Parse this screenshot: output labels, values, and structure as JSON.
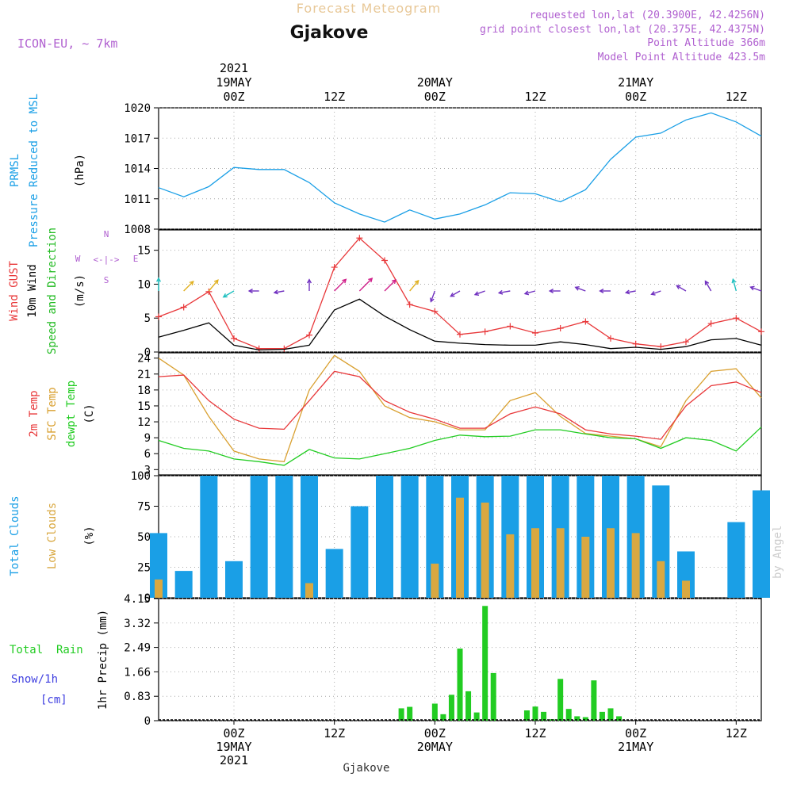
{
  "header": {
    "title": "Forecast Meteogram",
    "location": "Gjakove",
    "model": "ICON-EU, ~ 7km",
    "requested": "requested lon,lat (20.3900E, 42.4256N)",
    "grid_point": "grid point closest lon,lat (20.375E, 42.4375N)",
    "point_altitude": "Point Altitude 366m",
    "model_altitude": "Model Point Altitude 423.5m",
    "footer_location": "Gjakove",
    "credit": "by Angel"
  },
  "time_axis": {
    "start": "2021-05-18T15:00Z",
    "end": "2021-05-21T15:00Z",
    "ticks": [
      {
        "time": "2021-05-19T00:00Z",
        "top": [
          "2021",
          "19MAY",
          "00Z"
        ],
        "bottom": [
          "00Z",
          "19MAY",
          "2021"
        ]
      },
      {
        "time": "2021-05-19T12:00Z",
        "top": [
          "12Z"
        ],
        "bottom": [
          "12Z"
        ]
      },
      {
        "time": "2021-05-20T00:00Z",
        "top": [
          "20MAY",
          "00Z"
        ],
        "bottom": [
          "00Z",
          "20MAY"
        ]
      },
      {
        "time": "2021-05-20T12:00Z",
        "top": [
          "12Z"
        ],
        "bottom": [
          "12Z"
        ]
      },
      {
        "time": "2021-05-21T00:00Z",
        "top": [
          "21MAY",
          "00Z"
        ],
        "bottom": [
          "00Z",
          "21MAY"
        ]
      },
      {
        "time": "2021-05-21T12:00Z",
        "top": [
          "12Z"
        ],
        "bottom": [
          "12Z"
        ]
      }
    ]
  },
  "colors": {
    "pressure": "#1a9fe6",
    "gust": "#e8383a",
    "wind": "#000000",
    "dir_label": "#22bb22",
    "t2m": "#e8383a",
    "sfc": "#d9a030",
    "dewpt": "#22cc22",
    "total_clouds": "#1a9fe6",
    "low_clouds": "#d9a841",
    "rain": "#22cc22",
    "snow": "#4040e0",
    "purple": "#b060d0"
  },
  "chart_data": [
    {
      "type": "line",
      "name": "pressure",
      "ylabel": [
        "PRMSL",
        "Pressure Reduced to MSL",
        "(hPa)"
      ],
      "ylim": [
        1008,
        1020
      ],
      "yticks": [
        "1008",
        "1011",
        "1014",
        "1017",
        "1020"
      ],
      "grid": true,
      "x": [
        "2021-05-18T15:00Z",
        "2021-05-18T18:00Z",
        "2021-05-18T21:00Z",
        "2021-05-19T00:00Z",
        "2021-05-19T03:00Z",
        "2021-05-19T06:00Z",
        "2021-05-19T09:00Z",
        "2021-05-19T12:00Z",
        "2021-05-19T15:00Z",
        "2021-05-19T18:00Z",
        "2021-05-19T21:00Z",
        "2021-05-20T00:00Z",
        "2021-05-20T03:00Z",
        "2021-05-20T06:00Z",
        "2021-05-20T09:00Z",
        "2021-05-20T12:00Z",
        "2021-05-20T15:00Z",
        "2021-05-20T18:00Z",
        "2021-05-20T21:00Z",
        "2021-05-21T00:00Z",
        "2021-05-21T03:00Z",
        "2021-05-21T06:00Z",
        "2021-05-21T09:00Z",
        "2021-05-21T12:00Z",
        "2021-05-21T15:00Z"
      ],
      "series": [
        {
          "values": [
            1012.1,
            1011.2,
            1012.2,
            1014.1,
            1013.9,
            1013.9,
            1012.6,
            1010.6,
            1009.5,
            1008.7,
            1009.9,
            1009.0,
            1009.5,
            1010.4,
            1011.6,
            1011.5,
            1010.7,
            1011.9,
            1014.9,
            1017.1,
            1017.5,
            1018.8,
            1019.5,
            1018.6,
            1017.2
          ]
        }
      ]
    },
    {
      "type": "line",
      "name": "wind",
      "ylabel": [
        "Wind GUST",
        "10m Wind",
        "Speed and Direction",
        "(m/s)"
      ],
      "compass": [
        "N",
        "S",
        "W",
        "E",
        "<-|->"
      ],
      "ylim": [
        0,
        18
      ],
      "yticks": [
        "0",
        "5",
        "10",
        "15"
      ],
      "grid": true,
      "x": [
        "2021-05-18T15:00Z",
        "2021-05-18T18:00Z",
        "2021-05-18T21:00Z",
        "2021-05-19T00:00Z",
        "2021-05-19T03:00Z",
        "2021-05-19T06:00Z",
        "2021-05-19T09:00Z",
        "2021-05-19T12:00Z",
        "2021-05-19T15:00Z",
        "2021-05-19T18:00Z",
        "2021-05-19T21:00Z",
        "2021-05-20T00:00Z",
        "2021-05-20T03:00Z",
        "2021-05-20T06:00Z",
        "2021-05-20T09:00Z",
        "2021-05-20T12:00Z",
        "2021-05-20T15:00Z",
        "2021-05-20T18:00Z",
        "2021-05-20T21:00Z",
        "2021-05-21T00:00Z",
        "2021-05-21T03:00Z",
        "2021-05-21T06:00Z",
        "2021-05-21T09:00Z",
        "2021-05-21T12:00Z",
        "2021-05-21T15:00Z"
      ],
      "series": [
        {
          "key": "gust",
          "values": [
            5.2,
            6.6,
            8.9,
            2.0,
            0.5,
            0.5,
            2.5,
            12.5,
            16.8,
            13.5,
            7.0,
            6.0,
            2.6,
            3.0,
            3.8,
            2.8,
            3.5,
            4.5,
            2.0,
            1.2,
            0.8,
            1.5,
            4.2,
            5.0,
            3.0
          ]
        },
        {
          "key": "wind",
          "values": [
            2.2,
            3.2,
            4.3,
            1.0,
            0.3,
            0.4,
            1.0,
            6.2,
            7.8,
            5.3,
            3.3,
            1.6,
            1.3,
            1.1,
            1.0,
            1.0,
            1.5,
            1.1,
            0.5,
            0.7,
            0.4,
            0.8,
            1.8,
            2.0,
            1.0
          ]
        }
      ],
      "direction": [
        {
          "time": "2021-05-18T15:00Z",
          "dir": 180,
          "speed": 9
        },
        {
          "time": "2021-05-18T18:00Z",
          "dir": 225,
          "speed": 10
        },
        {
          "time": "2021-05-18T21:00Z",
          "dir": 220,
          "speed": 11
        },
        {
          "time": "2021-05-19T00:00Z",
          "dir": 60,
          "speed": 8
        },
        {
          "time": "2021-05-19T03:00Z",
          "dir": 90,
          "speed": 5
        },
        {
          "time": "2021-05-19T06:00Z",
          "dir": 80,
          "speed": 5
        },
        {
          "time": "2021-05-19T09:00Z",
          "dir": 180,
          "speed": 7
        },
        {
          "time": "2021-05-19T12:00Z",
          "dir": 225,
          "speed": 14
        },
        {
          "time": "2021-05-19T15:00Z",
          "dir": 225,
          "speed": 16
        },
        {
          "time": "2021-05-19T18:00Z",
          "dir": 225,
          "speed": 13
        },
        {
          "time": "2021-05-19T21:00Z",
          "dir": 220,
          "speed": 10
        },
        {
          "time": "2021-05-20T00:00Z",
          "dir": 20,
          "speed": 7
        },
        {
          "time": "2021-05-20T03:00Z",
          "dir": 60,
          "speed": 6
        },
        {
          "time": "2021-05-20T06:00Z",
          "dir": 70,
          "speed": 6
        },
        {
          "time": "2021-05-20T09:00Z",
          "dir": 80,
          "speed": 7
        },
        {
          "time": "2021-05-20T12:00Z",
          "dir": 75,
          "speed": 6
        },
        {
          "time": "2021-05-20T15:00Z",
          "dir": 90,
          "speed": 6
        },
        {
          "time": "2021-05-20T18:00Z",
          "dir": 110,
          "speed": 6
        },
        {
          "time": "2021-05-20T21:00Z",
          "dir": 90,
          "speed": 6
        },
        {
          "time": "2021-05-21T00:00Z",
          "dir": 80,
          "speed": 5
        },
        {
          "time": "2021-05-21T03:00Z",
          "dir": 70,
          "speed": 5
        },
        {
          "time": "2021-05-21T06:00Z",
          "dir": 120,
          "speed": 6
        },
        {
          "time": "2021-05-21T09:00Z",
          "dir": 150,
          "speed": 7
        },
        {
          "time": "2021-05-21T12:00Z",
          "dir": 165,
          "speed": 8
        },
        {
          "time": "2021-05-21T15:00Z",
          "dir": 110,
          "speed": 7
        }
      ]
    },
    {
      "type": "line",
      "name": "temperature",
      "ylabel": [
        "2m Temp",
        "SFC Temp",
        "dewpt Temp",
        "(C)"
      ],
      "ylim": [
        2,
        25
      ],
      "yticks": [
        "3",
        "6",
        "9",
        "12",
        "15",
        "18",
        "21",
        "24"
      ],
      "grid": true,
      "x": [
        "2021-05-18T15:00Z",
        "2021-05-18T18:00Z",
        "2021-05-18T21:00Z",
        "2021-05-19T00:00Z",
        "2021-05-19T03:00Z",
        "2021-05-19T06:00Z",
        "2021-05-19T09:00Z",
        "2021-05-19T12:00Z",
        "2021-05-19T15:00Z",
        "2021-05-19T18:00Z",
        "2021-05-19T21:00Z",
        "2021-05-20T00:00Z",
        "2021-05-20T03:00Z",
        "2021-05-20T06:00Z",
        "2021-05-20T09:00Z",
        "2021-05-20T12:00Z",
        "2021-05-20T15:00Z",
        "2021-05-20T18:00Z",
        "2021-05-20T21:00Z",
        "2021-05-21T00:00Z",
        "2021-05-21T03:00Z",
        "2021-05-21T06:00Z",
        "2021-05-21T09:00Z",
        "2021-05-21T12:00Z",
        "2021-05-21T15:00Z"
      ],
      "series": [
        {
          "key": "t2m",
          "values": [
            20.5,
            20.8,
            16.0,
            12.5,
            10.8,
            10.6,
            16.0,
            21.5,
            20.5,
            16.0,
            13.8,
            12.5,
            10.8,
            10.8,
            13.5,
            14.8,
            13.5,
            10.5,
            9.7,
            9.3,
            8.7,
            15.0,
            18.8,
            19.5,
            17.5
          ]
        },
        {
          "key": "sfc",
          "values": [
            24.0,
            20.8,
            13.0,
            6.5,
            5.0,
            4.5,
            18.0,
            24.5,
            21.5,
            15.0,
            12.8,
            12.0,
            10.5,
            10.5,
            16.0,
            17.5,
            13.0,
            9.8,
            9.3,
            8.8,
            7.3,
            16.0,
            21.5,
            22.0,
            16.5
          ]
        },
        {
          "key": "dewpt",
          "values": [
            8.5,
            7.0,
            6.5,
            5.0,
            4.5,
            3.8,
            6.8,
            5.2,
            5.0,
            6.0,
            7.0,
            8.5,
            9.5,
            9.2,
            9.3,
            10.5,
            10.5,
            9.7,
            9.0,
            8.8,
            7.0,
            9.0,
            8.5,
            6.5,
            11.0
          ]
        }
      ]
    },
    {
      "type": "bar",
      "name": "clouds",
      "ylabel": [
        "Total Clouds",
        "Low Clouds",
        "(%)"
      ],
      "ylim": [
        0,
        100
      ],
      "yticks": [
        "0",
        "25",
        "50",
        "75",
        "100"
      ],
      "grid": true,
      "x": [
        "2021-05-18T15:00Z",
        "2021-05-18T18:00Z",
        "2021-05-18T21:00Z",
        "2021-05-19T00:00Z",
        "2021-05-19T03:00Z",
        "2021-05-19T06:00Z",
        "2021-05-19T09:00Z",
        "2021-05-19T12:00Z",
        "2021-05-19T15:00Z",
        "2021-05-19T18:00Z",
        "2021-05-19T21:00Z",
        "2021-05-20T00:00Z",
        "2021-05-20T03:00Z",
        "2021-05-20T06:00Z",
        "2021-05-20T09:00Z",
        "2021-05-20T12:00Z",
        "2021-05-20T15:00Z",
        "2021-05-20T18:00Z",
        "2021-05-20T21:00Z",
        "2021-05-21T00:00Z",
        "2021-05-21T03:00Z",
        "2021-05-21T06:00Z",
        "2021-05-21T09:00Z",
        "2021-05-21T12:00Z",
        "2021-05-21T15:00Z"
      ],
      "series": [
        {
          "key": "total_clouds",
          "values": [
            53,
            22,
            100,
            30,
            100,
            100,
            100,
            40,
            75,
            100,
            100,
            100,
            100,
            100,
            100,
            100,
            100,
            100,
            100,
            100,
            92,
            38,
            0,
            62,
            88
          ]
        },
        {
          "key": "low_clouds",
          "values": [
            15,
            0,
            0,
            0,
            0,
            0,
            12,
            0,
            0,
            0,
            0,
            28,
            82,
            78,
            52,
            57,
            57,
            50,
            57,
            53,
            30,
            14,
            0,
            0,
            0
          ]
        }
      ]
    },
    {
      "type": "bar",
      "name": "precip",
      "ylabel": [
        "1hr Precip (mm)"
      ],
      "legend_lines": [
        "Total  Rain",
        "Snow/1h",
        "[cm]"
      ],
      "ylim": [
        0,
        4.15
      ],
      "yticks": [
        "0",
        "0.83",
        "1.66",
        "2.49",
        "3.32",
        "4.15"
      ],
      "grid": true,
      "x": [
        "2021-05-19T20:00Z",
        "2021-05-19T21:00Z",
        "2021-05-20T00:00Z",
        "2021-05-20T01:00Z",
        "2021-05-20T02:00Z",
        "2021-05-20T03:00Z",
        "2021-05-20T04:00Z",
        "2021-05-20T05:00Z",
        "2021-05-20T06:00Z",
        "2021-05-20T07:00Z",
        "2021-05-20T11:00Z",
        "2021-05-20T12:00Z",
        "2021-05-20T13:00Z",
        "2021-05-20T14:00Z",
        "2021-05-20T15:00Z",
        "2021-05-20T16:00Z",
        "2021-05-20T17:00Z",
        "2021-05-20T18:00Z",
        "2021-05-20T19:00Z",
        "2021-05-20T20:00Z",
        "2021-05-20T21:00Z",
        "2021-05-20T22:00Z"
      ],
      "series": [
        {
          "key": "rain",
          "values": [
            0.42,
            0.47,
            0.58,
            0.22,
            0.88,
            2.45,
            1.0,
            0.28,
            3.9,
            1.62,
            0.35,
            0.48,
            0.3,
            0.05,
            1.42,
            0.4,
            0.15,
            0.12,
            1.37,
            0.3,
            0.42,
            0.15
          ]
        }
      ]
    }
  ]
}
